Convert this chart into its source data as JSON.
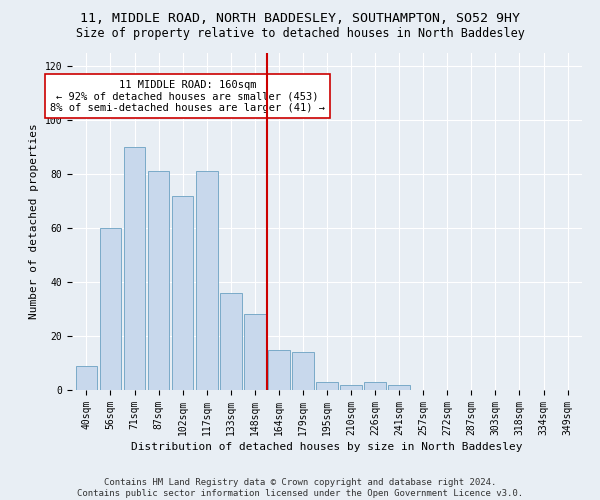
{
  "title": "11, MIDDLE ROAD, NORTH BADDESLEY, SOUTHAMPTON, SO52 9HY",
  "subtitle": "Size of property relative to detached houses in North Baddesley",
  "xlabel": "Distribution of detached houses by size in North Baddesley",
  "ylabel": "Number of detached properties",
  "bar_labels": [
    "40sqm",
    "56sqm",
    "71sqm",
    "87sqm",
    "102sqm",
    "117sqm",
    "133sqm",
    "148sqm",
    "164sqm",
    "179sqm",
    "195sqm",
    "210sqm",
    "226sqm",
    "241sqm",
    "257sqm",
    "272sqm",
    "287sqm",
    "303sqm",
    "318sqm",
    "334sqm",
    "349sqm"
  ],
  "bar_values": [
    9,
    60,
    90,
    81,
    72,
    81,
    36,
    28,
    15,
    14,
    3,
    2,
    3,
    2,
    0,
    0,
    0,
    0,
    0,
    0,
    0
  ],
  "bar_color": "#c8d8ec",
  "bar_edgecolor": "#7aaac8",
  "vline_x": 8,
  "vline_color": "#cc0000",
  "annotation_text": "11 MIDDLE ROAD: 160sqm\n← 92% of detached houses are smaller (453)\n8% of semi-detached houses are larger (41) →",
  "annotation_box_edgecolor": "#cc0000",
  "annotation_box_facecolor": "#ffffff",
  "ylim": [
    0,
    125
  ],
  "yticks": [
    0,
    20,
    40,
    60,
    80,
    100,
    120
  ],
  "footnote": "Contains HM Land Registry data © Crown copyright and database right 2024.\nContains public sector information licensed under the Open Government Licence v3.0.",
  "bg_color": "#e8eef4",
  "plot_bg_color": "#e8eef4",
  "grid_color": "#ffffff",
  "title_fontsize": 9.5,
  "subtitle_fontsize": 8.5,
  "xlabel_fontsize": 8,
  "ylabel_fontsize": 8,
  "tick_fontsize": 7,
  "annotation_fontsize": 7.5,
  "footnote_fontsize": 6.5
}
